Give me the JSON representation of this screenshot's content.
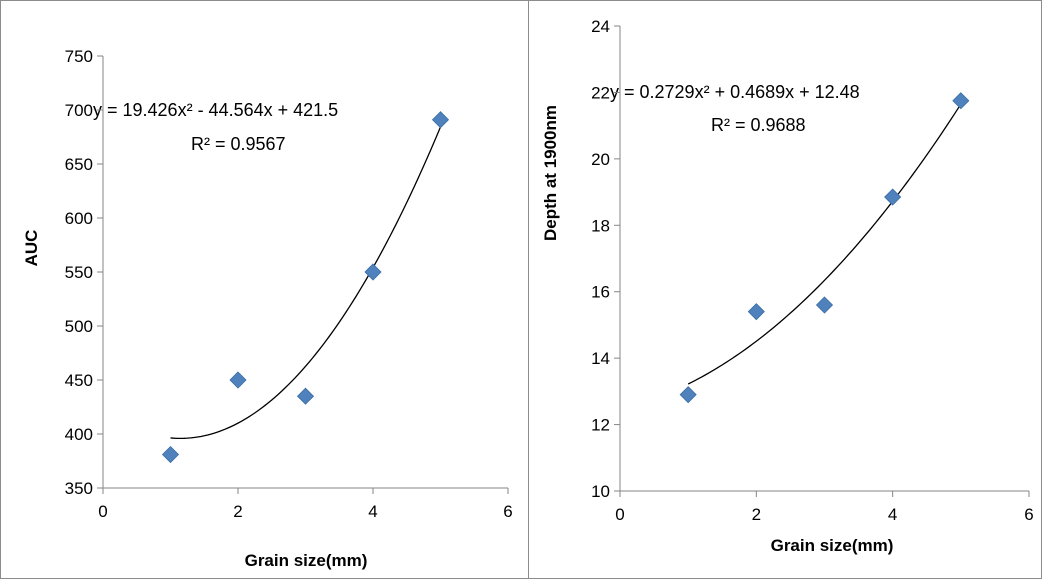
{
  "chart_data": [
    {
      "type": "scatter",
      "xlabel": "Grain size(mm)",
      "ylabel": "AUC",
      "xlim": [
        0,
        6
      ],
      "ylim": [
        350,
        750
      ],
      "xticks": [
        0,
        2,
        4,
        6
      ],
      "yticks": [
        350,
        400,
        450,
        500,
        550,
        600,
        650,
        700,
        750
      ],
      "grid": false,
      "marker": "diamond",
      "marker_color": "#4f81bd",
      "series": [
        {
          "x": [
            1,
            2,
            3,
            4,
            5
          ],
          "y": [
            381,
            450,
            435,
            550,
            691
          ]
        }
      ],
      "trendline": {
        "type": "polynomial",
        "coefficients": [
          19.426,
          -44.564,
          421.5
        ],
        "x_range": [
          1,
          5
        ],
        "equation_label": "y = 19.426x² - 44.564x + 421.5",
        "r2_label": "R² = 0.9567"
      }
    },
    {
      "type": "scatter",
      "xlabel": "Grain size(mm)",
      "ylabel": "Depth at 1900nm",
      "xlim": [
        0,
        6
      ],
      "ylim": [
        10,
        24
      ],
      "xticks": [
        0,
        2,
        4,
        6
      ],
      "yticks": [
        10,
        12,
        14,
        16,
        18,
        20,
        22,
        24
      ],
      "grid": false,
      "marker": "diamond",
      "marker_color": "#4f81bd",
      "series": [
        {
          "x": [
            1,
            2,
            3,
            4,
            5
          ],
          "y": [
            12.9,
            15.4,
            15.6,
            18.85,
            21.75
          ]
        }
      ],
      "trendline": {
        "type": "polynomial",
        "coefficients": [
          0.2729,
          0.4689,
          12.48
        ],
        "x_range": [
          1,
          5
        ],
        "equation_label": "y = 0.2729x² + 0.4689x + 12.48",
        "r2_label": "R² = 0.9688"
      }
    }
  ]
}
